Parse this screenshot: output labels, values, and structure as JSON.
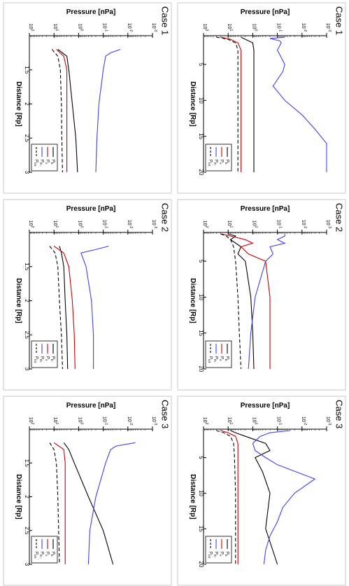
{
  "figure": {
    "label_axis_orientation": "rotated-90-clockwise"
  },
  "common": {
    "xlabel": "Distance [Rp]",
    "ylabel": "Pressure [nPa]",
    "yticks": [
      "10^-3",
      "10^-2",
      "10^-1",
      "10^0",
      "10^1",
      "10^2"
    ],
    "legend": [
      "P_b",
      "P_e",
      "P_th",
      "P_tot"
    ]
  },
  "colors": {
    "P_b": "#000000",
    "P_e": "#cc0000",
    "P_th": "#4040ee",
    "P_tot": "#000000"
  },
  "chart_data": [
    {
      "type": "line",
      "title": "Case 1",
      "xlabel": "Distance [Rp]",
      "ylabel": "Pressure [nPa]",
      "xlim": [
        1,
        20
      ],
      "xticks": [
        "5",
        "10",
        "15",
        "20"
      ],
      "ylim_log10": [
        -3,
        2
      ],
      "yscale": "log",
      "legend_position": "bottom",
      "series": [
        {
          "name": "P_b",
          "style": "solid",
          "x": [
            1.2,
            1.5,
            2,
            3,
            5,
            10,
            15,
            20
          ],
          "y": [
            3,
            2,
            1,
            0.9,
            0.9,
            0.9,
            0.9,
            0.9
          ]
        },
        {
          "name": "P_e",
          "style": "solid",
          "x": [
            1.2,
            1.5,
            2,
            3,
            5,
            10,
            15,
            20
          ],
          "y": [
            20,
            8,
            4,
            3,
            3,
            3,
            3,
            3
          ]
        },
        {
          "name": "P_th",
          "style": "solid",
          "x": [
            1.2,
            1.4,
            1.7,
            2,
            3,
            5,
            6,
            8,
            10,
            12,
            14,
            16,
            18,
            20
          ],
          "y": [
            0.05,
            0.2,
            0.08,
            0.07,
            0.1,
            0.05,
            0.06,
            0.15,
            0.05,
            0.01,
            0.003,
            0.001,
            0.001,
            0.001
          ]
        },
        {
          "name": "P_tot",
          "style": "dashed",
          "x": [
            1.2,
            1.5,
            2,
            3,
            5,
            10,
            15,
            20
          ],
          "y": [
            30,
            10,
            5,
            4,
            4,
            4,
            4,
            4
          ]
        }
      ]
    },
    {
      "type": "line",
      "title": "Case 1",
      "xlabel": "Distance [Rp]",
      "ylabel": "Pressure [nPa]",
      "xlim": [
        1,
        3
      ],
      "xticks": [
        "1.5",
        "2",
        "2.5",
        "3"
      ],
      "ylim_log10": [
        -3,
        2
      ],
      "yscale": "log",
      "legend_position": "bottom",
      "series": [
        {
          "name": "P_b",
          "style": "solid",
          "x": [
            1.2,
            1.3,
            1.5,
            2,
            2.5,
            3
          ],
          "y": [
            7,
            3,
            2.5,
            1.8,
            1.3,
            1.1
          ]
        },
        {
          "name": "P_e",
          "style": "solid",
          "x": [
            1.2,
            1.3,
            1.5,
            2,
            2.5,
            3
          ],
          "y": [
            8,
            4,
            3,
            3,
            3,
            3
          ]
        },
        {
          "name": "P_th",
          "style": "solid",
          "x": [
            1.2,
            1.25,
            1.3,
            1.5,
            2,
            2.5,
            3
          ],
          "y": [
            0.02,
            0.05,
            0.08,
            0.1,
            0.15,
            0.18,
            0.2
          ]
        },
        {
          "name": "P_tot",
          "style": "dashed",
          "x": [
            1.2,
            1.3,
            1.5,
            2,
            2.5,
            3
          ],
          "y": [
            12,
            7,
            5.5,
            5,
            4.8,
            4.5
          ]
        }
      ]
    },
    {
      "type": "line",
      "title": "Case 2",
      "xlabel": "Distance [Rp]",
      "ylabel": "Pressure [nPa]",
      "xlim": [
        1,
        20
      ],
      "xticks": [
        "5",
        "10",
        "15",
        "20"
      ],
      "ylim_log10": [
        -3,
        2
      ],
      "yscale": "log",
      "legend_position": "bottom",
      "series": [
        {
          "name": "P_b",
          "style": "solid",
          "x": [
            1.2,
            1.5,
            2,
            3,
            4,
            5,
            10,
            15,
            20
          ],
          "y": [
            10,
            5,
            8,
            3,
            4,
            2,
            1.2,
            1,
            0.9
          ]
        },
        {
          "name": "P_e",
          "style": "solid",
          "x": [
            1.2,
            1.5,
            2,
            2.5,
            3,
            4,
            5,
            10,
            15,
            20
          ],
          "y": [
            20,
            8,
            2,
            1,
            3,
            1.5,
            0.3,
            0.2,
            0.2,
            0.2
          ]
        },
        {
          "name": "P_th",
          "style": "solid",
          "x": [
            1.2,
            1.5,
            2,
            2.5,
            3,
            4,
            5,
            10,
            15,
            20
          ],
          "y": [
            0.05,
            0.05,
            0.1,
            0.05,
            0.2,
            0.15,
            0.3,
            0.8,
            1.2,
            1.5
          ]
        },
        {
          "name": "P_tot",
          "style": "dashed",
          "x": [
            1.2,
            1.5,
            2,
            3,
            5,
            10,
            15,
            20
          ],
          "y": [
            20,
            12,
            8,
            6,
            5,
            4,
            3.5,
            3
          ]
        }
      ]
    },
    {
      "type": "line",
      "title": "Case 2",
      "xlabel": "Distance [Rp]",
      "ylabel": "Pressure [nPa]",
      "xlim": [
        1,
        3
      ],
      "xticks": [
        "1.5",
        "2",
        "2.5",
        "3"
      ],
      "ylim_log10": [
        -3,
        2
      ],
      "yscale": "log",
      "legend_position": "bottom",
      "series": [
        {
          "name": "P_b",
          "style": "solid",
          "x": [
            1.2,
            1.3,
            1.5,
            2,
            2.5,
            3
          ],
          "y": [
            6,
            5,
            4,
            3.5,
            3,
            2.8
          ]
        },
        {
          "name": "P_e",
          "style": "solid",
          "x": [
            1.2,
            1.3,
            1.5,
            2,
            2.5,
            3
          ],
          "y": [
            10,
            4,
            2.5,
            1.8,
            1.5,
            1.4
          ]
        },
        {
          "name": "P_th",
          "style": "solid",
          "x": [
            1.2,
            1.25,
            1.3,
            1.5,
            2,
            2.5,
            3
          ],
          "y": [
            0.06,
            0.2,
            0.8,
            0.5,
            0.3,
            0.25,
            0.25
          ]
        },
        {
          "name": "P_tot",
          "style": "dashed",
          "x": [
            1.2,
            1.3,
            1.5,
            2,
            2.5,
            3
          ],
          "y": [
            15,
            9,
            7,
            6,
            5,
            4.5
          ]
        }
      ]
    },
    {
      "type": "line",
      "title": "Case 3",
      "xlabel": "Distance [Rp]",
      "ylabel": "Pressure [nPa]",
      "xlim": [
        1,
        20
      ],
      "xticks": [
        "5",
        "10",
        "15",
        "20"
      ],
      "ylim_log10": [
        -3,
        2
      ],
      "yscale": "log",
      "legend_position": "bottom",
      "series": [
        {
          "name": "P_b",
          "style": "solid",
          "x": [
            1.2,
            1.5,
            2,
            3,
            4,
            5,
            7,
            10,
            15,
            20
          ],
          "y": [
            8,
            5,
            2,
            0.3,
            0.2,
            0.8,
            0.4,
            0.2,
            0.3,
            0.1
          ]
        },
        {
          "name": "P_e",
          "style": "solid",
          "x": [
            1.2,
            1.5,
            2,
            3,
            5,
            10,
            15,
            20
          ],
          "y": [
            20,
            10,
            5,
            4,
            4,
            4,
            4,
            4
          ]
        },
        {
          "name": "P_th",
          "style": "solid",
          "x": [
            1.2,
            1.5,
            2,
            3,
            4,
            5,
            6,
            8,
            10,
            12,
            14,
            16,
            18,
            20
          ],
          "y": [
            0.03,
            0.2,
            0.5,
            1,
            0.8,
            0.3,
            0.1,
            0.003,
            0.02,
            0.06,
            0.1,
            0.2,
            0.3,
            0.35
          ]
        },
        {
          "name": "P_tot",
          "style": "dashed",
          "x": [
            1.2,
            1.5,
            2,
            3,
            5,
            10,
            15,
            20
          ],
          "y": [
            30,
            15,
            8,
            6,
            5.5,
            5,
            5,
            5
          ]
        }
      ]
    },
    {
      "type": "line",
      "title": "Case 3",
      "xlabel": "Distance [Rp]",
      "ylabel": "Pressure [nPa]",
      "xlim": [
        1,
        3
      ],
      "xticks": [
        "1.5",
        "2",
        "2.5",
        "3"
      ],
      "ylim_log10": [
        -3,
        2
      ],
      "yscale": "log",
      "legend_position": "bottom",
      "series": [
        {
          "name": "P_b",
          "style": "solid",
          "x": [
            1.2,
            1.3,
            1.5,
            2,
            2.5,
            3
          ],
          "y": [
            4,
            2.5,
            1.5,
            0.4,
            0.1,
            0.04
          ]
        },
        {
          "name": "P_e",
          "style": "solid",
          "x": [
            1.2,
            1.3,
            1.5,
            2,
            2.5,
            3
          ],
          "y": [
            10,
            4,
            3.5,
            3.5,
            3.5,
            3.5
          ]
        },
        {
          "name": "P_th",
          "style": "solid",
          "x": [
            1.2,
            1.25,
            1.3,
            1.5,
            2,
            2.5,
            3
          ],
          "y": [
            0.005,
            0.03,
            0.05,
            0.08,
            0.2,
            0.35,
            0.4
          ]
        },
        {
          "name": "P_tot",
          "style": "dashed",
          "x": [
            1.2,
            1.3,
            1.5,
            2,
            2.5,
            3
          ],
          "y": [
            15,
            10,
            8,
            7,
            6.5,
            6
          ]
        }
      ]
    }
  ]
}
